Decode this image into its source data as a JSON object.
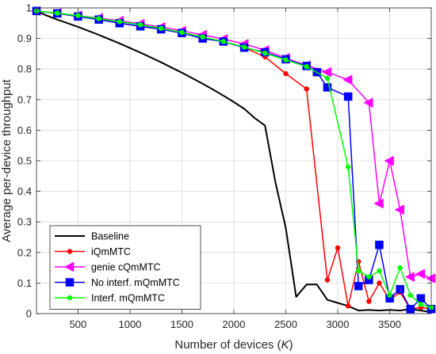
{
  "chart_data": {
    "type": "line",
    "xlabel": "Number of devices (",
    "xlabel_var": "K",
    "xlabel_close": ")",
    "ylabel": "Average per-device throughput",
    "xlim": [
      100,
      3900
    ],
    "ylim": [
      0,
      1
    ],
    "xticks": [
      500,
      1000,
      1500,
      2000,
      2500,
      3000,
      3500
    ],
    "xtick_labels": [
      "500",
      "1000",
      "1500",
      "2000",
      "2500",
      "3000",
      "3500"
    ],
    "yticks": [
      0,
      0.1,
      0.2,
      0.3,
      0.4,
      0.5,
      0.6,
      0.7,
      0.8,
      0.9,
      1
    ],
    "ytick_labels": [
      "0",
      "0.1",
      "0.2",
      "0.3",
      "0.4",
      "0.5",
      "0.6",
      "0.7",
      "0.8",
      "0.9",
      "1"
    ],
    "grid": true,
    "legend_position": "bottom-left",
    "series": [
      {
        "name": "Baseline",
        "color": "#000000",
        "marker": "none",
        "x": [
          100,
          200,
          300,
          400,
          500,
          600,
          700,
          800,
          900,
          1000,
          1100,
          1200,
          1300,
          1400,
          1500,
          1600,
          1700,
          1800,
          1900,
          2000,
          2100,
          2200,
          2300,
          2400,
          2500,
          2600,
          2700,
          2800,
          2900,
          3000,
          3100,
          3200,
          3300,
          3400,
          3500,
          3600,
          3700,
          3800,
          3900
        ],
        "y": [
          0.99,
          0.975,
          0.962,
          0.95,
          0.938,
          0.925,
          0.912,
          0.898,
          0.884,
          0.869,
          0.854,
          0.838,
          0.822,
          0.805,
          0.788,
          0.77,
          0.752,
          0.733,
          0.713,
          0.692,
          0.67,
          0.64,
          0.615,
          0.43,
          0.28,
          0.055,
          0.095,
          0.095,
          0.045,
          0.035,
          0.025,
          0.01,
          0.012,
          0.01,
          0.012,
          0.01,
          0.015,
          0.01,
          0.005
        ]
      },
      {
        "name": "iQmMTC",
        "color": "#ff0000",
        "marker": "dot",
        "x": [
          100,
          300,
          500,
          700,
          900,
          1100,
          1300,
          1500,
          1700,
          1900,
          2100,
          2300,
          2500,
          2700,
          2900,
          3000,
          3100,
          3200,
          3300,
          3400,
          3500,
          3600,
          3700,
          3800,
          3900
        ],
        "y": [
          0.99,
          0.982,
          0.972,
          0.962,
          0.95,
          0.94,
          0.93,
          0.918,
          0.9,
          0.89,
          0.87,
          0.84,
          0.785,
          0.735,
          0.11,
          0.215,
          0.025,
          0.17,
          0.04,
          0.1,
          0.045,
          0.07,
          0.015,
          0.02,
          0.015
        ]
      },
      {
        "name": "genie cQmMTC",
        "color": "#ff00ff",
        "marker": "triangle-left",
        "x": [
          100,
          300,
          500,
          700,
          900,
          1100,
          1300,
          1500,
          1700,
          1900,
          2100,
          2300,
          2500,
          2700,
          2900,
          3100,
          3300,
          3400,
          3500,
          3600,
          3700,
          3800,
          3900
        ],
        "y": [
          0.99,
          0.983,
          0.975,
          0.967,
          0.958,
          0.948,
          0.937,
          0.925,
          0.912,
          0.898,
          0.882,
          0.862,
          0.836,
          0.812,
          0.79,
          0.765,
          0.69,
          0.36,
          0.5,
          0.34,
          0.12,
          0.13,
          0.115
        ]
      },
      {
        "name": "No interf. mQmMTC",
        "color": "#0000ff",
        "marker": "square",
        "x": [
          100,
          300,
          500,
          700,
          900,
          1100,
          1300,
          1500,
          1700,
          1900,
          2100,
          2300,
          2500,
          2700,
          2800,
          2900,
          3100,
          3200,
          3300,
          3400,
          3500,
          3600,
          3700,
          3800,
          3900
        ],
        "y": [
          0.99,
          0.982,
          0.972,
          0.962,
          0.95,
          0.94,
          0.93,
          0.918,
          0.9,
          0.89,
          0.87,
          0.855,
          0.832,
          0.81,
          0.79,
          0.74,
          0.71,
          0.09,
          0.11,
          0.225,
          0.05,
          0.08,
          0.015,
          0.05,
          0.015
        ]
      },
      {
        "name": "Interf. mQmMTC",
        "color": "#00ff00",
        "marker": "dot",
        "x": [
          100,
          300,
          500,
          700,
          900,
          1100,
          1300,
          1500,
          1700,
          1900,
          2100,
          2300,
          2500,
          2700,
          2900,
          3100,
          3200,
          3300,
          3400,
          3500,
          3600,
          3700,
          3800,
          3900
        ],
        "y": [
          0.99,
          0.983,
          0.975,
          0.965,
          0.955,
          0.945,
          0.933,
          0.92,
          0.905,
          0.89,
          0.872,
          0.852,
          0.83,
          0.808,
          0.77,
          0.48,
          0.14,
          0.12,
          0.14,
          0.06,
          0.15,
          0.06,
          0.03,
          0.02
        ]
      }
    ]
  }
}
